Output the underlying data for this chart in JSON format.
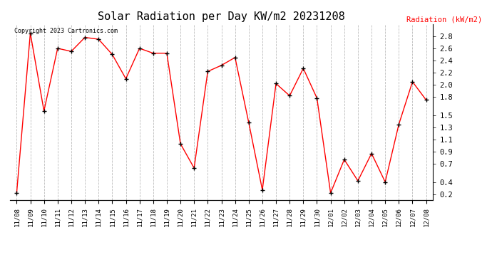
{
  "title": "Solar Radiation per Day KW/m2 20231208",
  "legend_label": "Radiation (kW/m2)",
  "copyright": "Copyright 2023 Cartronics.com",
  "dates": [
    "11/08",
    "11/09",
    "11/10",
    "11/11",
    "11/12",
    "11/13",
    "11/14",
    "11/15",
    "11/16",
    "11/17",
    "11/18",
    "11/19",
    "11/20",
    "11/21",
    "11/22",
    "11/23",
    "11/24",
    "11/25",
    "11/26",
    "11/27",
    "11/28",
    "11/29",
    "11/30",
    "12/01",
    "12/02",
    "12/03",
    "12/04",
    "12/05",
    "12/06",
    "12/07",
    "12/08"
  ],
  "values": [
    0.22,
    2.85,
    1.57,
    2.6,
    2.55,
    2.78,
    2.75,
    2.5,
    2.1,
    2.6,
    2.52,
    2.52,
    1.03,
    0.63,
    2.22,
    2.32,
    2.45,
    1.38,
    0.27,
    2.02,
    1.82,
    2.27,
    1.78,
    0.22,
    0.77,
    0.42,
    0.87,
    0.4,
    1.35,
    2.05,
    1.75
  ],
  "line_color": "red",
  "marker": "+",
  "marker_color": "black",
  "background_color": "white",
  "grid_color": "#bbbbbb",
  "title_fontsize": 11,
  "ylabel_color": "red",
  "copyright_color": "black",
  "ylim": [
    0.1,
    3.0
  ],
  "yticks": [
    0.2,
    0.4,
    0.7,
    0.9,
    1.1,
    1.3,
    1.5,
    1.8,
    2.0,
    2.2,
    2.4,
    2.6,
    2.8
  ]
}
